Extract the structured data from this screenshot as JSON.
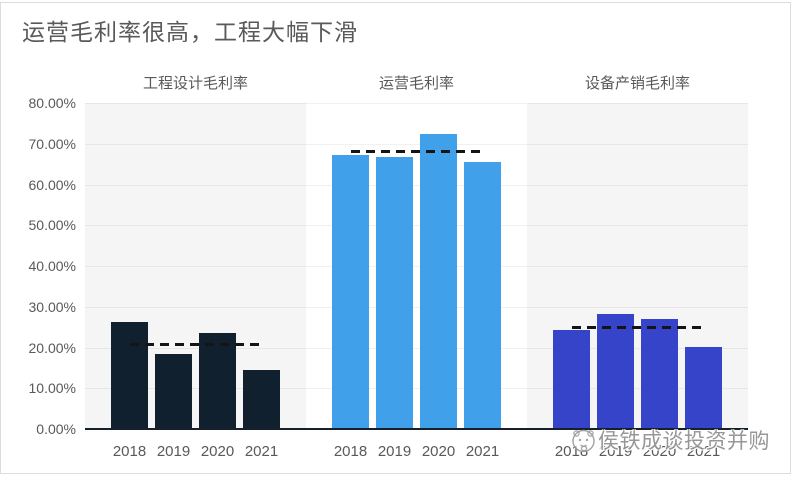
{
  "title": "运营毛利率很高，工程大幅下滑",
  "watermark": {
    "text": "侯铁成谈投资并购",
    "icon": "avatar-face-icon"
  },
  "colors": {
    "engineering_bar": "#10202f",
    "operation_bar": "#41a0ea",
    "equipment_bar": "#3644c9",
    "average_line": "#141414",
    "axis_line": "#16202c",
    "text_gray": "#595959",
    "band_gray": "#f5f5f6"
  },
  "chart_data": {
    "type": "bar",
    "title": "运营毛利率很高，工程大幅下滑",
    "categories": [
      "2018",
      "2019",
      "2020",
      "2021"
    ],
    "y_ticks": [
      "80.00%",
      "70.00%",
      "60.00%",
      "50.00%",
      "40.00%",
      "30.00%",
      "20.00%",
      "10.00%",
      "0.00%"
    ],
    "ylim": [
      0,
      80
    ],
    "unit": "percent",
    "grid": true,
    "legend": "none",
    "panels": [
      {
        "label": "工程设计毛利率",
        "series_color": "#10202f",
        "values": [
          26.2,
          18.4,
          23.6,
          14.4
        ],
        "average_dashed_line": 20.7
      },
      {
        "label": "运营毛利率",
        "series_color": "#41a0ea",
        "values": [
          67.2,
          66.8,
          72.4,
          65.4
        ],
        "average_dashed_line": 68.0
      },
      {
        "label": "设备产销毛利率",
        "series_color": "#3644c9",
        "values": [
          24.2,
          28.3,
          27.1,
          20.1
        ],
        "average_dashed_line": 24.9
      }
    ]
  }
}
